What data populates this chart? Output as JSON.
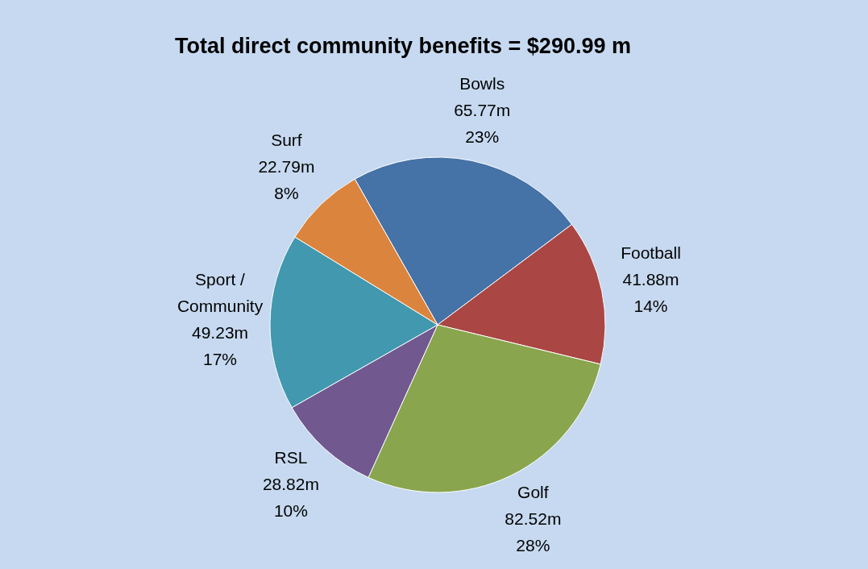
{
  "chart_data": {
    "type": "pie",
    "title": "Total direct community benefits = $290.99 m",
    "categories": [
      "Bowls",
      "Football",
      "Golf",
      "RSL",
      "Sport / Community",
      "Surf"
    ],
    "values": [
      23,
      14,
      28,
      10,
      17,
      8
    ],
    "value_labels": [
      "65.77m\n23%",
      "41.88m\n14%",
      "82.52m\n28%",
      "28.82m\n10%",
      "49.23m\n17%",
      "22.79m\n8%"
    ],
    "colors": [
      "#4572a7",
      "#aa4643",
      "#89a54e",
      "#71588f",
      "#4198af",
      "#db843d"
    ],
    "legend": false
  }
}
